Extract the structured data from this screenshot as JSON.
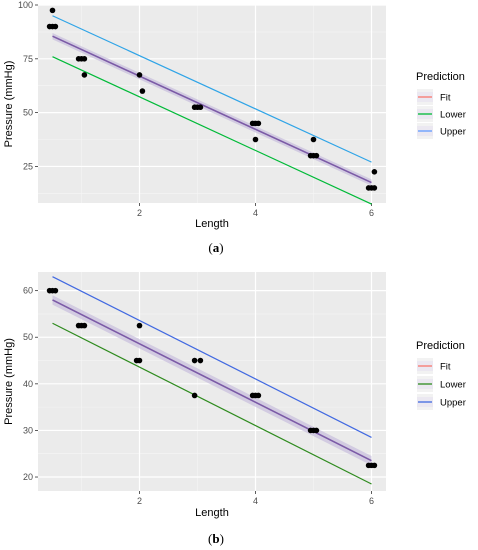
{
  "figure_labels": [
    "(a)",
    "(b)"
  ],
  "chart_data": [
    {
      "type": "scatter",
      "panel_label": "(a)",
      "xlabel": "Length",
      "ylabel": "Pressure (mmHg)",
      "xlim": [
        0.25,
        6.25
      ],
      "ylim": [
        8,
        100
      ],
      "xticks": [
        2,
        4,
        6
      ],
      "yticks": [
        25,
        50,
        75,
        100
      ],
      "grid": true,
      "legend": {
        "title": "Prediction",
        "placement": "right",
        "entries": [
          {
            "label": "Fit",
            "color": "#F8766D"
          },
          {
            "label": "Lower",
            "color": "#00BA38"
          },
          {
            "label": "Upper",
            "color": "#619CFF"
          }
        ]
      },
      "points": [
        [
          0.5,
          97.5
        ],
        [
          0.45,
          90
        ],
        [
          0.5,
          90
        ],
        [
          0.55,
          90
        ],
        [
          0.95,
          75
        ],
        [
          1.0,
          75
        ],
        [
          1.05,
          75
        ],
        [
          1.05,
          67.5
        ],
        [
          2.0,
          67.5
        ],
        [
          2.05,
          60
        ],
        [
          2.95,
          52.5
        ],
        [
          3.0,
          52.5
        ],
        [
          3.05,
          52.5
        ],
        [
          3.95,
          45
        ],
        [
          4.0,
          45
        ],
        [
          4.05,
          45
        ],
        [
          4.0,
          37.5
        ],
        [
          4.95,
          30
        ],
        [
          5.0,
          30
        ],
        [
          5.05,
          30
        ],
        [
          5.0,
          37.5
        ],
        [
          5.95,
          15
        ],
        [
          6.0,
          15
        ],
        [
          6.05,
          15
        ],
        [
          6.05,
          22.5
        ]
      ],
      "series": [
        {
          "name": "Fit",
          "x": [
            0.5,
            6.0
          ],
          "y": [
            85.5,
            17.5
          ],
          "color": "#7B5AA6"
        },
        {
          "name": "Lower",
          "x": [
            0.5,
            6.0
          ],
          "y": [
            76,
            7.5
          ],
          "color": "#00BA38"
        },
        {
          "name": "Upper",
          "x": [
            0.5,
            6.0
          ],
          "y": [
            95,
            27
          ],
          "color": "#2FA4E7"
        }
      ],
      "ci_band": {
        "x": [
          0.5,
          6.0
        ],
        "lower": [
          84,
          16
        ],
        "upper": [
          87,
          19
        ]
      }
    },
    {
      "type": "scatter",
      "panel_label": "(b)",
      "xlabel": "Length",
      "ylabel": "Pressure (mmHg)",
      "xlim": [
        0.25,
        6.25
      ],
      "ylim": [
        17,
        64
      ],
      "xticks": [
        2,
        4,
        6
      ],
      "yticks": [
        20,
        30,
        40,
        50,
        60
      ],
      "grid": true,
      "legend": {
        "title": "Prediction",
        "placement": "right",
        "entries": [
          {
            "label": "Fit",
            "color": "#F8766D"
          },
          {
            "label": "Lower",
            "color": "#2E8B1E"
          },
          {
            "label": "Upper",
            "color": "#4169E1"
          }
        ]
      },
      "points": [
        [
          0.45,
          60
        ],
        [
          0.5,
          60
        ],
        [
          0.55,
          60
        ],
        [
          0.95,
          52.5
        ],
        [
          1.0,
          52.5
        ],
        [
          1.05,
          52.5
        ],
        [
          1.95,
          45
        ],
        [
          2.0,
          45
        ],
        [
          2.0,
          52.5
        ],
        [
          2.95,
          45
        ],
        [
          3.05,
          45
        ],
        [
          2.95,
          37.5
        ],
        [
          3.95,
          37.5
        ],
        [
          4.0,
          37.5
        ],
        [
          4.05,
          37.5
        ],
        [
          4.95,
          30
        ],
        [
          5.0,
          30
        ],
        [
          5.05,
          30
        ],
        [
          5.95,
          22.5
        ],
        [
          6.0,
          22.5
        ],
        [
          6.05,
          22.5
        ]
      ],
      "series": [
        {
          "name": "Fit",
          "x": [
            0.5,
            6.0
          ],
          "y": [
            58,
            23.5
          ],
          "color": "#7B5AA6"
        },
        {
          "name": "Lower",
          "x": [
            0.5,
            6.0
          ],
          "y": [
            53,
            18.5
          ],
          "color": "#2E8B1E"
        },
        {
          "name": "Upper",
          "x": [
            0.5,
            6.0
          ],
          "y": [
            63,
            28.5
          ],
          "color": "#4169E1"
        }
      ],
      "ci_band": {
        "x": [
          0.5,
          6.0
        ],
        "lower": [
          57,
          22.5
        ],
        "upper": [
          59,
          24.5
        ]
      }
    }
  ]
}
